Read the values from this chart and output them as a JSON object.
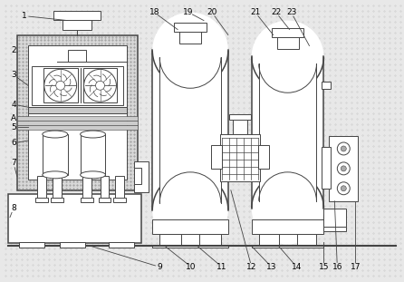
{
  "bg_color": "#e8e8e8",
  "line_color": "#444444",
  "lw": 0.7,
  "lw2": 1.1,
  "figsize": [
    4.46,
    3.11
  ],
  "dpi": 100
}
